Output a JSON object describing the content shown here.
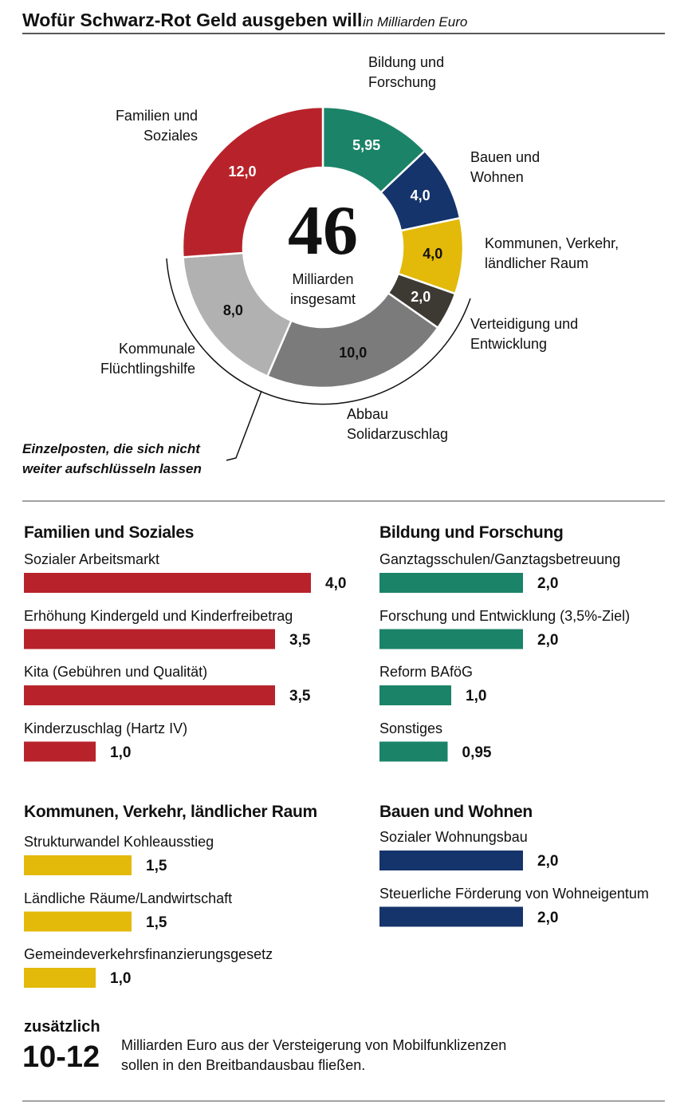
{
  "title": "Wofür Schwarz-Rot Geld ausgeben will",
  "subtitle": "in Milliarden Euro",
  "chart_data": [
    {
      "type": "donut",
      "categories": [
        "Bildung und\nForschung",
        "Bauen und\nWohnen",
        "Kommunen, Verkehr,\nländlicher Raum",
        "Verteidigung und\nEntwicklung",
        "Abbau\nSolidarzuschlag",
        "Kommunale\nFlüchtlingshilfe",
        "Familien und\nSoziales"
      ],
      "values": [
        5.95,
        4.0,
        4.0,
        2.0,
        10.0,
        8.0,
        12.0
      ],
      "value_labels": [
        "5,95",
        "4,0",
        "4,0",
        "2,0",
        "10,0",
        "8,0",
        "12,0"
      ],
      "colors": [
        "#1b8368",
        "#15346b",
        "#e3b90a",
        "#3d3a34",
        "#7b7b7b",
        "#b1b1b1",
        "#b8232b"
      ],
      "total": 46,
      "total_label": "Milliarden\ninsgesamt",
      "annotation": "Einzelposten, die sich nicht\nweiter aufschlüsseln lassen"
    },
    {
      "type": "bar",
      "title": "Familien und Soziales",
      "categories": [
        "Sozialer Arbeitsmarkt",
        "Erhöhung Kindergeld und Kinderfreibetrag",
        "Kita (Gebühren und Qualität)",
        "Kinderzuschlag (Hartz IV)"
      ],
      "values": [
        4.0,
        3.5,
        3.5,
        1.0
      ],
      "value_labels": [
        "4,0",
        "3,5",
        "3,5",
        "1,0"
      ],
      "color": "#b8232b"
    },
    {
      "type": "bar",
      "title": "Bildung und Forschung",
      "categories": [
        "Ganztagsschulen/Ganztagsbetreuung",
        "Forschung und Entwicklung (3,5%-Ziel)",
        "Reform BAföG",
        "Sonstiges"
      ],
      "values": [
        2.0,
        2.0,
        1.0,
        0.95
      ],
      "value_labels": [
        "2,0",
        "2,0",
        "1,0",
        "0,95"
      ],
      "color": "#1b8368"
    },
    {
      "type": "bar",
      "title": "Kommunen, Verkehr, ländlicher Raum",
      "categories": [
        "Strukturwandel Kohleausstieg",
        "Ländliche Räume/Landwirtschaft",
        "Gemeindeverkehrsfinanzierungsgesetz"
      ],
      "values": [
        1.5,
        1.5,
        1.0
      ],
      "value_labels": [
        "1,5",
        "1,5",
        "1,0"
      ],
      "color": "#e3b90a"
    },
    {
      "type": "bar",
      "title": "Bauen und Wohnen",
      "categories": [
        "Sozialer Wohnungsbau",
        "Steuerliche Förderung von Wohneigentum"
      ],
      "values": [
        2.0,
        2.0
      ],
      "value_labels": [
        "2,0",
        "2,0"
      ],
      "color": "#15346b"
    }
  ],
  "footer": {
    "kicker": "zusätzlich",
    "figure": "10-12",
    "text": "Milliarden Euro aus der Versteigerung von Mobilfunklizenzen\nsollen in den Breitbandausbau fließen."
  }
}
